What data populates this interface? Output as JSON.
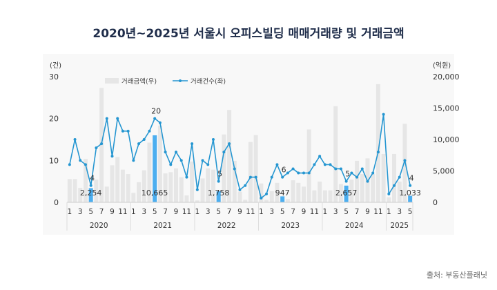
{
  "chart_data": {
    "type": "bar+line",
    "title": "2020년~2025년 서울시 오피스빌딩 매매거래량 및 거래금액",
    "left_axis": {
      "unit": "(건)",
      "ylim": [
        0,
        30
      ],
      "ticks": [
        0,
        10,
        20,
        30
      ]
    },
    "right_axis": {
      "unit": "(억원)",
      "ylim": [
        0,
        20000
      ],
      "ticks": [
        "0",
        "5,000",
        "10,000",
        "15,000",
        "20,000"
      ]
    },
    "years": [
      "2020",
      "2021",
      "2022",
      "2023",
      "2024",
      "2025"
    ],
    "month_tick_labels": [
      "1",
      "3",
      "5",
      "7",
      "9",
      "11"
    ],
    "legend": {
      "position": "top-left",
      "bar": "거래금액(우)",
      "line": "거래건수(좌)"
    },
    "series": [
      {
        "name": "거래금액(우)",
        "type": "bar",
        "axis": "right",
        "values": [
          3700,
          3700,
          2300,
          6900,
          2254,
          3600,
          18200,
          2500,
          5900,
          7200,
          5200,
          4500,
          1500,
          3200,
          5100,
          9500,
          10665,
          12200,
          4600,
          4800,
          5400,
          4000,
          1100,
          6500,
          300,
          3800,
          5400,
          5200,
          1758,
          10800,
          14700,
          6600,
          1700,
          400,
          9600,
          10700,
          3000,
          400,
          1800,
          3100,
          947,
          500,
          3500,
          3100,
          2500,
          11600,
          1900,
          3300,
          1900,
          1900,
          15300,
          2900,
          2657,
          3600,
          6600,
          4500,
          7000,
          4500,
          18800,
          7700,
          800,
          7700,
          3300,
          12500,
          1033
        ]
      },
      {
        "name": "거래건수(좌)",
        "type": "line",
        "axis": "left",
        "values": [
          9,
          15,
          10,
          9,
          4,
          13,
          14,
          20,
          11,
          20,
          17,
          17,
          10,
          14,
          15,
          17,
          20,
          19,
          12,
          9,
          12,
          10,
          6,
          14,
          3,
          10,
          9,
          15,
          5,
          12,
          14,
          8,
          3,
          4,
          6,
          6,
          1,
          2,
          6,
          9,
          6,
          7,
          8,
          7,
          7,
          7,
          9,
          11,
          9,
          9,
          8,
          8,
          5,
          7,
          6,
          8,
          5,
          7,
          12,
          21,
          2,
          4,
          6,
          10,
          4
        ]
      }
    ],
    "highlight_month": 5,
    "bar_labels": [
      "2,254",
      "10,665",
      "1,758",
      "947",
      "2,657",
      "1,033"
    ],
    "line_labels": [
      "4",
      "20",
      "5",
      "6",
      "5",
      "4"
    ],
    "colors": {
      "bar": "#e6e6e6",
      "highlight_bar": "#4baef0",
      "line": "#2596d1"
    }
  },
  "source": "출처: 부동산플래닛"
}
